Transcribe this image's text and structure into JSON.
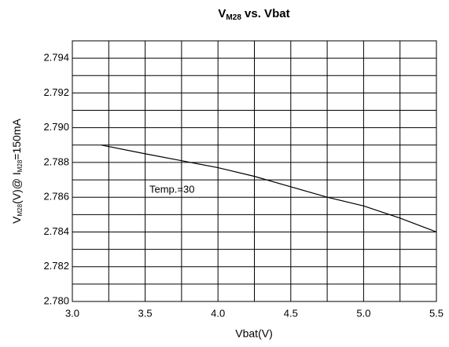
{
  "chart_data": {
    "type": "line",
    "title": {
      "main": "V",
      "sub": "M28",
      "rest": " vs. Vbat"
    },
    "x_label": "Vbat(V)",
    "y_label": {
      "main": "V",
      "sub": "M28",
      "mid": "(V)@ I",
      "sub2": "M28",
      "rest": "=150mA"
    },
    "annotation": "Temp.=30",
    "x": [
      3.2,
      3.5,
      3.75,
      4.0,
      4.25,
      4.5,
      4.75,
      5.0,
      5.25,
      5.5
    ],
    "series": [
      {
        "name": "Temp.=30",
        "color": "#000000",
        "values": [
          2.789,
          2.7885,
          2.7881,
          2.7877,
          2.7872,
          2.7866,
          2.786,
          2.7855,
          2.7848,
          2.784
        ]
      }
    ],
    "xlim": [
      3.0,
      5.5
    ],
    "xticks": [
      {
        "value": 3.0,
        "label": "3.0"
      },
      3.5,
      {
        "value": 4.0,
        "label": "4.0"
      },
      4.5,
      {
        "value": 5.0,
        "label": "5.0"
      },
      5.5
    ],
    "xminor_ticks": [
      3.25,
      3.75,
      4.25,
      4.75,
      5.25
    ],
    "ylim": [
      2.78,
      2.795
    ],
    "yticks": [
      {
        "value": 2.78,
        "label": "2.780"
      },
      2.782,
      2.784,
      2.786,
      2.788,
      {
        "value": 2.79,
        "label": "2.790"
      },
      2.792,
      2.794
    ],
    "yminor_ticks": [
      2.781,
      2.783,
      2.785,
      2.787,
      2.789,
      2.791,
      2.793,
      2.795
    ],
    "grid": true
  }
}
